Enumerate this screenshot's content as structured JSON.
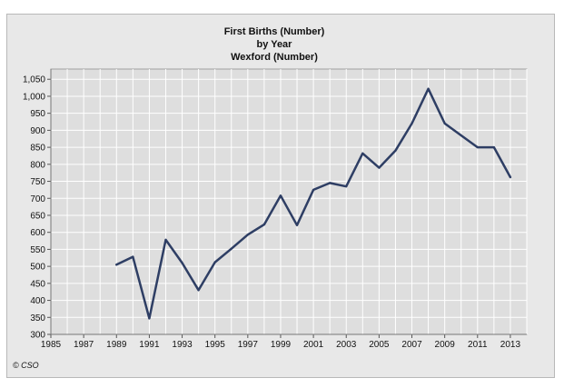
{
  "chart_data": {
    "type": "line",
    "title_lines": [
      "First Births (Number)",
      "by Year",
      "Wexford (Number)"
    ],
    "xlabel": "",
    "ylabel": "",
    "xlim": [
      1985,
      2014
    ],
    "ylim": [
      300,
      1080
    ],
    "x_ticks": [
      "1985",
      "1987",
      "1989",
      "1991",
      "1993",
      "1995",
      "1997",
      "1999",
      "2001",
      "2003",
      "2005",
      "2007",
      "2009",
      "2011",
      "2013"
    ],
    "y_ticks": [
      "300",
      "350",
      "400",
      "450",
      "500",
      "550",
      "600",
      "650",
      "700",
      "750",
      "800",
      "850",
      "900",
      "950",
      "1,000",
      "1,050"
    ],
    "grid": true,
    "legend": "none",
    "series": [
      {
        "color": "#2e3e64",
        "x": [
          1989,
          1990,
          1991,
          1992,
          1993,
          1994,
          1995,
          1996,
          1997,
          1998,
          1999,
          2000,
          2001,
          2002,
          2003,
          2004,
          2005,
          2006,
          2007,
          2008,
          2009,
          2010,
          2011,
          2012,
          2013
        ],
        "values": [
          505,
          528,
          347,
          578,
          510,
          430,
          512,
          552,
          593,
          623,
          708,
          621,
          725,
          745,
          735,
          832,
          790,
          840,
          920,
          1022,
          920,
          885,
          850,
          850,
          762
        ]
      }
    ],
    "source_credit": "© CSO"
  }
}
